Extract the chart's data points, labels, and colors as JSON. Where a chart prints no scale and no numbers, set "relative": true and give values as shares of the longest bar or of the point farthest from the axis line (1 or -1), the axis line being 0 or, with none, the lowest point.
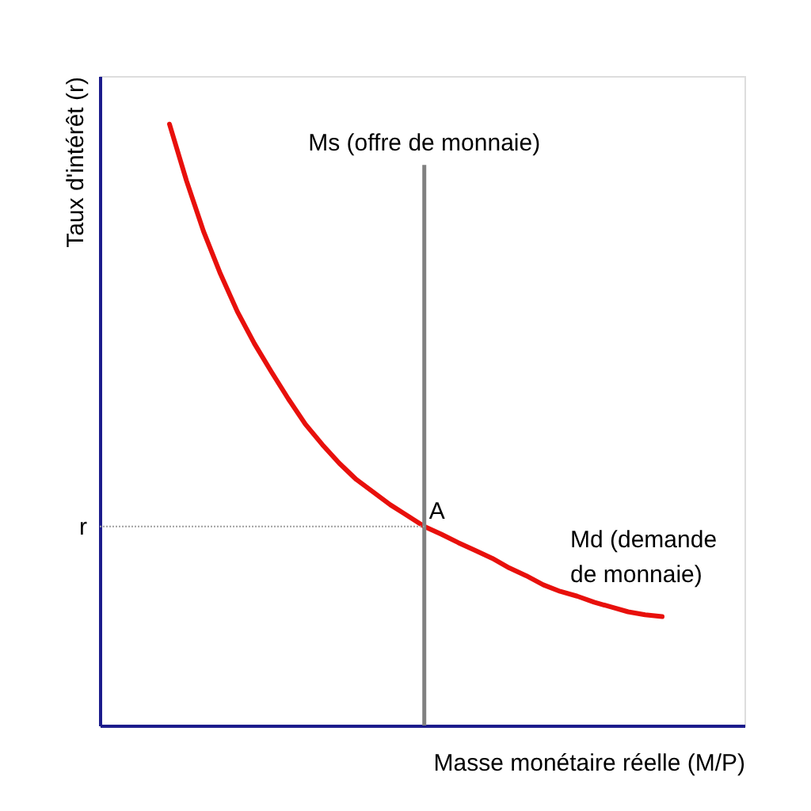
{
  "chart_data": {
    "type": "line",
    "relative": true,
    "xlabel": "Masse monétaire réelle (M/P)",
    "ylabel": "Taux d'intérêt (r)",
    "categories": [
      null,
      null,
      null,
      null,
      null,
      null,
      null,
      null,
      null,
      null,
      null,
      null,
      null,
      null,
      null,
      null,
      null,
      null,
      null,
      null,
      null,
      null,
      null,
      null,
      null,
      null,
      null,
      null,
      null,
      null
    ],
    "series": [
      {
        "name": "Md (demande de monnaie)",
        "color": "#e8100c",
        "values": [
          1.0,
          0.906,
          0.822,
          0.751,
          0.688,
          0.635,
          0.588,
          0.543,
          0.501,
          0.467,
          0.436,
          0.409,
          0.388,
          0.367,
          0.349,
          0.331,
          0.318,
          0.304,
          0.291,
          0.278,
          0.262,
          0.249,
          0.234,
          0.223,
          0.215,
          0.205,
          0.197,
          0.189,
          0.184,
          0.181
        ]
      }
    ],
    "ref_lines": [
      {
        "axis": "x",
        "label": "Ms (offre de monnaie)",
        "color": "#808080",
        "line_style": "solid"
      },
      {
        "axis": "y",
        "value": 0.331,
        "label": "r",
        "color": "#a0a0a0",
        "line_style": "dotted"
      }
    ],
    "annotations": [
      {
        "text": "A",
        "y": 0.331
      }
    ]
  }
}
